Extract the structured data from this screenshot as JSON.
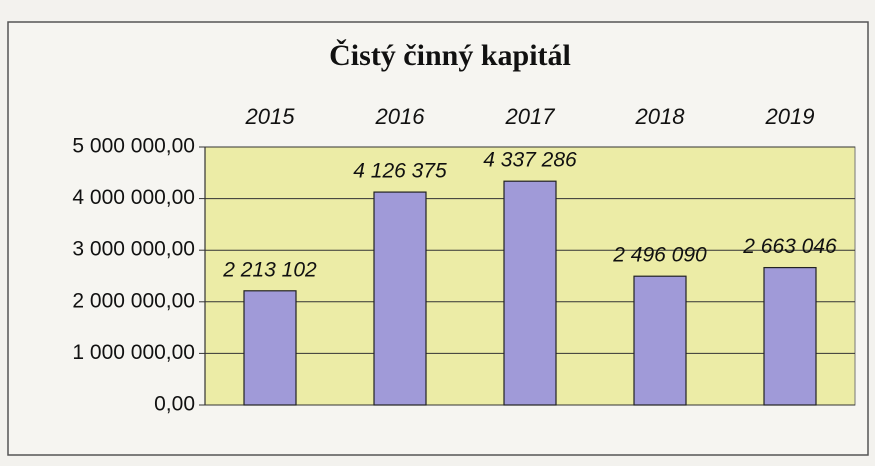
{
  "chart_data": {
    "type": "bar",
    "title": "Čistý činný kapitál",
    "categories": [
      "2015",
      "2016",
      "2017",
      "2018",
      "2019"
    ],
    "values": [
      2213102,
      4126375,
      4337286,
      2496090,
      2663046
    ],
    "value_labels": [
      "2 213 102",
      "4 126 375",
      "4 337 286",
      "2 496 090",
      "2 663 046"
    ],
    "color": "#a09ad8",
    "ylim": [
      0,
      5000000
    ],
    "yticks": [
      {
        "value": 0,
        "label": "0,00"
      },
      {
        "value": 1000000,
        "label": "1 000 000,00"
      },
      {
        "value": 2000000,
        "label": "2 000 000,00"
      },
      {
        "value": 3000000,
        "label": "3 000 000,00"
      },
      {
        "value": 4000000,
        "label": "4 000 000,00"
      },
      {
        "value": 5000000,
        "label": "5 000 000,00"
      }
    ],
    "grid": true
  }
}
